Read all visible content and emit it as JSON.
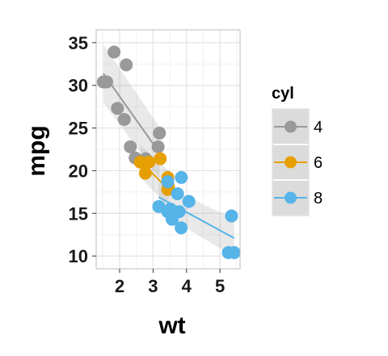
{
  "chart_data": {
    "type": "scatter",
    "xlabel": "wt",
    "ylabel": "mpg",
    "xlim": [
      1.3,
      5.6
    ],
    "ylim": [
      8.5,
      36.5
    ],
    "x_ticks": [
      2,
      3,
      4,
      5
    ],
    "y_ticks": [
      10,
      15,
      20,
      25,
      30,
      35
    ],
    "grid": true,
    "legend_position": "right",
    "legend_title": "cyl",
    "series": [
      {
        "name": "4",
        "color": "#999999",
        "x": [
          2.32,
          3.19,
          3.15,
          2.2,
          1.615,
          1.835,
          2.465,
          1.935,
          2.14,
          1.513,
          2.78
        ],
        "y": [
          22.8,
          24.4,
          22.8,
          32.4,
          30.4,
          33.9,
          21.5,
          27.3,
          26.0,
          30.4,
          21.4
        ],
        "fit": {
          "x": [
            1.513,
            3.19
          ],
          "y": [
            31.4,
            22.1
          ],
          "band_upper": [
            34.8,
            25.1
          ],
          "band_lower": [
            28.0,
            19.1
          ]
        }
      },
      {
        "name": "6",
        "color": "#E69F00",
        "x": [
          2.62,
          2.875,
          3.215,
          3.46,
          3.44,
          3.44,
          2.77
        ],
        "y": [
          21.0,
          21.0,
          21.4,
          18.1,
          19.2,
          17.8,
          19.7
        ],
        "fit": {
          "x": [
            2.62,
            3.46
          ],
          "y": [
            21.1,
            17.8
          ],
          "band_upper": [
            23.0,
            20.0
          ],
          "band_lower": [
            19.2,
            15.8
          ]
        }
      },
      {
        "name": "8",
        "color": "#56B4E9",
        "x": [
          3.44,
          3.57,
          4.07,
          3.73,
          3.78,
          5.25,
          5.424,
          5.345,
          3.52,
          3.435,
          3.84,
          3.845,
          3.17,
          3.57
        ],
        "y": [
          18.7,
          14.3,
          16.4,
          17.3,
          15.2,
          10.4,
          10.4,
          14.7,
          15.5,
          15.2,
          13.3,
          19.2,
          15.8,
          15.0
        ],
        "fit": {
          "x": [
            3.17,
            5.424
          ],
          "y": [
            16.9,
            12.1
          ],
          "band_upper": [
            18.6,
            14.3
          ],
          "band_lower": [
            15.2,
            9.9
          ]
        }
      }
    ]
  }
}
